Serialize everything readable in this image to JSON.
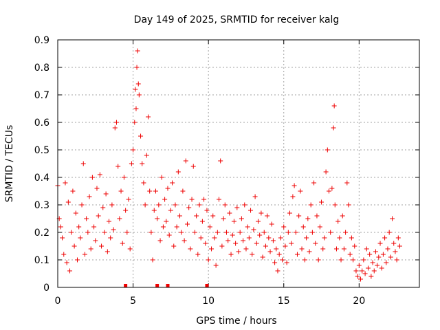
{
  "chart_data": {
    "type": "scatter",
    "title": "Day 149 of 2025, SRMTID for receiver kalg",
    "xlabel": "GPS time / hours",
    "ylabel": "SRMTID / TECUs",
    "xlim": [
      0,
      24
    ],
    "ylim": [
      0,
      0.9
    ],
    "xticks": [
      0,
      5,
      10,
      15,
      20
    ],
    "xtick_labels": [
      "0",
      "5",
      "10",
      "15",
      "20"
    ],
    "yticks": [
      0,
      0.1,
      0.2,
      0.3,
      0.4,
      0.5,
      0.6,
      0.7,
      0.8,
      0.9
    ],
    "ytick_labels": [
      "0",
      "0.1",
      "0.2",
      "0.3",
      "0.4",
      "0.5",
      "0.6",
      "0.7",
      "0.8",
      "0.9"
    ],
    "grid": true,
    "marker": "+",
    "color": "#ee0000",
    "series": [
      {
        "name": "SRMTID",
        "points": [
          [
            0.0,
            0.37
          ],
          [
            0.1,
            0.25
          ],
          [
            0.2,
            0.22
          ],
          [
            0.3,
            0.18
          ],
          [
            0.4,
            0.12
          ],
          [
            0.5,
            0.38
          ],
          [
            0.6,
            0.09
          ],
          [
            0.7,
            0.31
          ],
          [
            0.8,
            0.06
          ],
          [
            0.9,
            0.2
          ],
          [
            1.0,
            0.35
          ],
          [
            1.1,
            0.15
          ],
          [
            1.2,
            0.27
          ],
          [
            1.3,
            0.1
          ],
          [
            1.4,
            0.22
          ],
          [
            1.5,
            0.18
          ],
          [
            1.6,
            0.3
          ],
          [
            1.7,
            0.45
          ],
          [
            1.8,
            0.12
          ],
          [
            1.9,
            0.25
          ],
          [
            2.0,
            0.2
          ],
          [
            2.1,
            0.33
          ],
          [
            2.2,
            0.14
          ],
          [
            2.3,
            0.4
          ],
          [
            2.4,
            0.22
          ],
          [
            2.5,
            0.17
          ],
          [
            2.6,
            0.36
          ],
          [
            2.7,
            0.26
          ],
          [
            2.8,
            0.41
          ],
          [
            2.9,
            0.15
          ],
          [
            3.0,
            0.29
          ],
          [
            3.1,
            0.2
          ],
          [
            3.2,
            0.34
          ],
          [
            3.3,
            0.13
          ],
          [
            3.4,
            0.24
          ],
          [
            3.5,
            0.18
          ],
          [
            3.6,
            0.3
          ],
          [
            3.7,
            0.21
          ],
          [
            3.8,
            0.58
          ],
          [
            3.9,
            0.6
          ],
          [
            4.0,
            0.44
          ],
          [
            4.1,
            0.25
          ],
          [
            4.2,
            0.35
          ],
          [
            4.3,
            0.16
          ],
          [
            4.4,
            0.4
          ],
          [
            4.5,
            0.28
          ],
          [
            4.6,
            0.2
          ],
          [
            4.7,
            0.32
          ],
          [
            4.8,
            0.14
          ],
          [
            4.9,
            0.45
          ],
          [
            5.0,
            0.5
          ],
          [
            5.1,
            0.6
          ],
          [
            5.15,
            0.72
          ],
          [
            5.2,
            0.65
          ],
          [
            5.25,
            0.8
          ],
          [
            5.3,
            0.86
          ],
          [
            5.35,
            0.74
          ],
          [
            5.4,
            0.7
          ],
          [
            5.5,
            0.55
          ],
          [
            5.6,
            0.45
          ],
          [
            5.7,
            0.38
          ],
          [
            5.8,
            0.3
          ],
          [
            5.9,
            0.48
          ],
          [
            6.0,
            0.62
          ],
          [
            6.1,
            0.35
          ],
          [
            6.2,
            0.2
          ],
          [
            6.3,
            0.1
          ],
          [
            6.4,
            0.28
          ],
          [
            6.5,
            0.35
          ],
          [
            6.6,
            0.25
          ],
          [
            6.7,
            0.3
          ],
          [
            6.8,
            0.17
          ],
          [
            6.9,
            0.4
          ],
          [
            7.0,
            0.22
          ],
          [
            7.1,
            0.32
          ],
          [
            7.2,
            0.24
          ],
          [
            7.3,
            0.36
          ],
          [
            7.4,
            0.19
          ],
          [
            7.5,
            0.28
          ],
          [
            7.6,
            0.38
          ],
          [
            7.7,
            0.15
          ],
          [
            7.8,
            0.3
          ],
          [
            7.9,
            0.22
          ],
          [
            8.0,
            0.42
          ],
          [
            8.1,
            0.26
          ],
          [
            8.2,
            0.2
          ],
          [
            8.3,
            0.35
          ],
          [
            8.4,
            0.17
          ],
          [
            8.5,
            0.46
          ],
          [
            8.6,
            0.23
          ],
          [
            8.7,
            0.29
          ],
          [
            8.8,
            0.14
          ],
          [
            8.9,
            0.32
          ],
          [
            9.0,
            0.44
          ],
          [
            9.1,
            0.2
          ],
          [
            9.2,
            0.26
          ],
          [
            9.3,
            0.12
          ],
          [
            9.4,
            0.3
          ],
          [
            9.5,
            0.18
          ],
          [
            9.6,
            0.24
          ],
          [
            9.7,
            0.32
          ],
          [
            9.8,
            0.16
          ],
          [
            9.9,
            0.28
          ],
          [
            10.0,
            0.1
          ],
          [
            10.1,
            0.22
          ],
          [
            10.2,
            0.14
          ],
          [
            10.3,
            0.26
          ],
          [
            10.4,
            0.18
          ],
          [
            10.5,
            0.08
          ],
          [
            10.6,
            0.2
          ],
          [
            10.7,
            0.32
          ],
          [
            10.8,
            0.46
          ],
          [
            10.9,
            0.15
          ],
          [
            11.0,
            0.25
          ],
          [
            11.1,
            0.3
          ],
          [
            11.2,
            0.2
          ],
          [
            11.3,
            0.17
          ],
          [
            11.4,
            0.27
          ],
          [
            11.5,
            0.12
          ],
          [
            11.6,
            0.19
          ],
          [
            11.7,
            0.24
          ],
          [
            11.8,
            0.16
          ],
          [
            11.9,
            0.29
          ],
          [
            12.0,
            0.13
          ],
          [
            12.1,
            0.2
          ],
          [
            12.2,
            0.25
          ],
          [
            12.3,
            0.17
          ],
          [
            12.4,
            0.3
          ],
          [
            12.5,
            0.14
          ],
          [
            12.6,
            0.22
          ],
          [
            12.7,
            0.18
          ],
          [
            12.8,
            0.28
          ],
          [
            12.9,
            0.12
          ],
          [
            13.0,
            0.21
          ],
          [
            13.1,
            0.33
          ],
          [
            13.2,
            0.16
          ],
          [
            13.3,
            0.24
          ],
          [
            13.4,
            0.19
          ],
          [
            13.5,
            0.27
          ],
          [
            13.6,
            0.11
          ],
          [
            13.7,
            0.2
          ],
          [
            13.8,
            0.15
          ],
          [
            13.9,
            0.26
          ],
          [
            14.0,
            0.18
          ],
          [
            14.1,
            0.13
          ],
          [
            14.2,
            0.23
          ],
          [
            14.3,
            0.17
          ],
          [
            14.4,
            0.09
          ],
          [
            14.5,
            0.14
          ],
          [
            14.6,
            0.06
          ],
          [
            14.7,
            0.12
          ],
          [
            14.8,
            0.18
          ],
          [
            14.9,
            0.1
          ],
          [
            15.0,
            0.22
          ],
          [
            15.1,
            0.15
          ],
          [
            15.2,
            0.09
          ],
          [
            15.3,
            0.2
          ],
          [
            15.4,
            0.27
          ],
          [
            15.5,
            0.16
          ],
          [
            15.6,
            0.33
          ],
          [
            15.7,
            0.37
          ],
          [
            15.8,
            0.2
          ],
          [
            15.9,
            0.12
          ],
          [
            16.0,
            0.26
          ],
          [
            16.1,
            0.35
          ],
          [
            16.2,
            0.14
          ],
          [
            16.3,
            0.22
          ],
          [
            16.4,
            0.1
          ],
          [
            16.5,
            0.18
          ],
          [
            16.6,
            0.25
          ],
          [
            16.7,
            0.13
          ],
          [
            16.8,
            0.3
          ],
          [
            16.9,
            0.2
          ],
          [
            17.0,
            0.38
          ],
          [
            17.1,
            0.16
          ],
          [
            17.2,
            0.26
          ],
          [
            17.3,
            0.1
          ],
          [
            17.4,
            0.22
          ],
          [
            17.5,
            0.31
          ],
          [
            17.6,
            0.14
          ],
          [
            17.7,
            0.18
          ],
          [
            17.8,
            0.42
          ],
          [
            17.9,
            0.5
          ],
          [
            18.0,
            0.35
          ],
          [
            18.1,
            0.2
          ],
          [
            18.2,
            0.36
          ],
          [
            18.3,
            0.58
          ],
          [
            18.35,
            0.66
          ],
          [
            18.4,
            0.3
          ],
          [
            18.5,
            0.14
          ],
          [
            18.6,
            0.24
          ],
          [
            18.7,
            0.18
          ],
          [
            18.8,
            0.1
          ],
          [
            18.9,
            0.26
          ],
          [
            19.0,
            0.14
          ],
          [
            19.1,
            0.2
          ],
          [
            19.2,
            0.38
          ],
          [
            19.3,
            0.3
          ],
          [
            19.4,
            0.12
          ],
          [
            19.5,
            0.18
          ],
          [
            19.6,
            0.1
          ],
          [
            19.7,
            0.15
          ],
          [
            19.8,
            0.06
          ],
          [
            19.9,
            0.04
          ],
          [
            20.0,
            0.08
          ],
          [
            20.1,
            0.03
          ],
          [
            20.2,
            0.06
          ],
          [
            20.3,
            0.1
          ],
          [
            20.4,
            0.05
          ],
          [
            20.5,
            0.14
          ],
          [
            20.6,
            0.07
          ],
          [
            20.7,
            0.12
          ],
          [
            20.8,
            0.04
          ],
          [
            20.9,
            0.09
          ],
          [
            21.0,
            0.06
          ],
          [
            21.1,
            0.13
          ],
          [
            21.2,
            0.08
          ],
          [
            21.3,
            0.11
          ],
          [
            21.4,
            0.16
          ],
          [
            21.5,
            0.07
          ],
          [
            21.6,
            0.12
          ],
          [
            21.7,
            0.18
          ],
          [
            21.8,
            0.09
          ],
          [
            21.9,
            0.14
          ],
          [
            22.0,
            0.2
          ],
          [
            22.1,
            0.11
          ],
          [
            22.2,
            0.25
          ],
          [
            22.3,
            0.16
          ],
          [
            22.4,
            0.13
          ],
          [
            22.5,
            0.1
          ],
          [
            22.6,
            0.18
          ],
          [
            22.7,
            0.15
          ]
        ]
      }
    ],
    "gap_markers_x": [
      4.5,
      6.6,
      7.3,
      9.9
    ]
  }
}
